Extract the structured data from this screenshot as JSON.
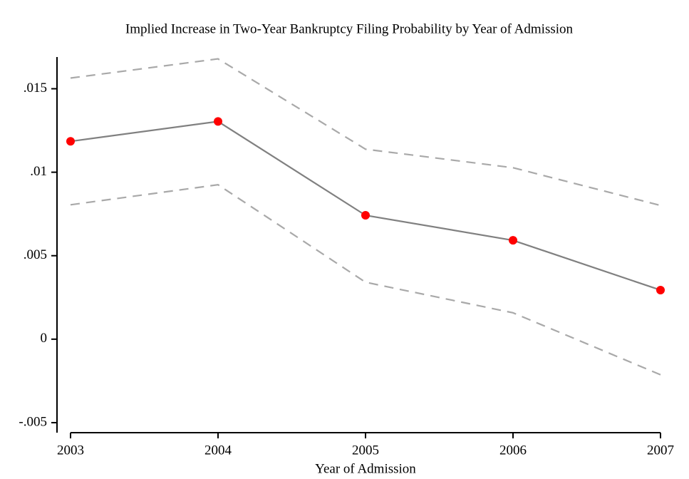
{
  "chart_data": {
    "type": "line",
    "title": "Implied Increase in Two-Year Bankruptcy Filing Probability by Year of Admission",
    "x_label": "Year of Admission",
    "x": [
      2003,
      2004,
      2005,
      2006,
      2007
    ],
    "series": [
      {
        "color": "#a9a9a9",
        "dashed": true,
        "markers": false,
        "values": [
          0.01564,
          0.01679,
          0.01138,
          0.01027,
          0.00801
        ]
      },
      {
        "color": "#a9a9a9",
        "dashed": true,
        "markers": false,
        "values": [
          0.00805,
          0.00925,
          0.00341,
          0.00158,
          -0.00213
        ]
      },
      {
        "color": "#808080",
        "dashed": false,
        "markers": true,
        "marker_color": "#ff0000",
        "values": [
          0.01185,
          0.01304,
          0.00742,
          0.00592,
          0.00294
        ]
      }
    ],
    "xlim": [
      2003,
      2007
    ],
    "xticks": [
      2003,
      2004,
      2005,
      2006,
      2007
    ],
    "ylim": [
      -0.0056,
      0.0169
    ],
    "yticks": [
      {
        "value": -0.005,
        "label": "-.005"
      },
      0,
      {
        "value": 0.005,
        "label": ".005"
      },
      {
        "value": 0.01,
        "label": ".01"
      },
      {
        "value": 0.015,
        "label": ".015"
      }
    ]
  }
}
